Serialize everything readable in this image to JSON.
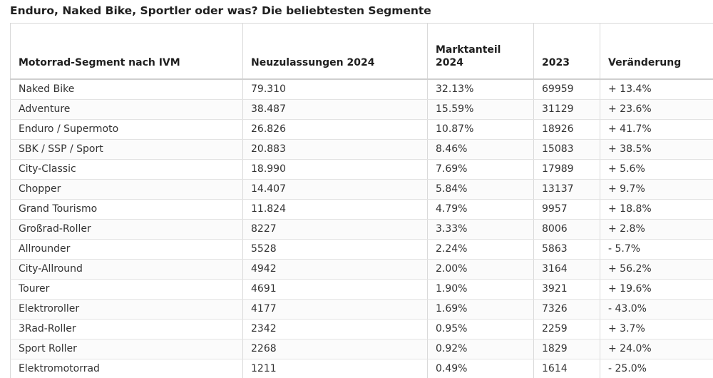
{
  "title": "Enduro, Naked Bike, Sportler oder was? Die beliebtesten Segmente",
  "table": {
    "headers": {
      "segment": "Motorrad-Segment nach IVM",
      "registrations_2024": "Neuzulassungen 2024",
      "market_share_2024": "Marktanteil 2024",
      "year_2023": "2023",
      "change": "Veränderung"
    },
    "rows": [
      {
        "segment": "Naked Bike",
        "registrations_2024": "79.310",
        "market_share_2024": "32.13%",
        "year_2023": "69959",
        "change": "+ 13.4%"
      },
      {
        "segment": "Adventure",
        "registrations_2024": "38.487",
        "market_share_2024": "15.59%",
        "year_2023": "31129",
        "change": "+ 23.6%"
      },
      {
        "segment": "Enduro / Supermoto",
        "registrations_2024": "26.826",
        "market_share_2024": "10.87%",
        "year_2023": "18926",
        "change": "+ 41.7%"
      },
      {
        "segment": "SBK / SSP / Sport",
        "registrations_2024": "20.883",
        "market_share_2024": "8.46%",
        "year_2023": "15083",
        "change": "+ 38.5%"
      },
      {
        "segment": "City-Classic",
        "registrations_2024": "18.990",
        "market_share_2024": "7.69%",
        "year_2023": "17989",
        "change": "+ 5.6%"
      },
      {
        "segment": "Chopper",
        "registrations_2024": "14.407",
        "market_share_2024": "5.84%",
        "year_2023": "13137",
        "change": "+ 9.7%"
      },
      {
        "segment": "Grand Tourismo",
        "registrations_2024": "11.824",
        "market_share_2024": "4.79%",
        "year_2023": "9957",
        "change": "+ 18.8%"
      },
      {
        "segment": "Großrad-Roller",
        "registrations_2024": "8227",
        "market_share_2024": "3.33%",
        "year_2023": "8006",
        "change": "+ 2.8%"
      },
      {
        "segment": "Allrounder",
        "registrations_2024": "5528",
        "market_share_2024": "2.24%",
        "year_2023": "5863",
        "change": "- 5.7%"
      },
      {
        "segment": "City-Allround",
        "registrations_2024": "4942",
        "market_share_2024": "2.00%",
        "year_2023": "3164",
        "change": "+ 56.2%"
      },
      {
        "segment": "Tourer",
        "registrations_2024": "4691",
        "market_share_2024": "1.90%",
        "year_2023": "3921",
        "change": "+ 19.6%"
      },
      {
        "segment": "Elektroroller",
        "registrations_2024": "4177",
        "market_share_2024": "1.69%",
        "year_2023": "7326",
        "change": "- 43.0%"
      },
      {
        "segment": "3Rad-Roller",
        "registrations_2024": "2342",
        "market_share_2024": "0.95%",
        "year_2023": "2259",
        "change": "+ 3.7%"
      },
      {
        "segment": "Sport Roller",
        "registrations_2024": "2268",
        "market_share_2024": "0.92%",
        "year_2023": "1829",
        "change": "+ 24.0%"
      },
      {
        "segment": "Elektromotorrad",
        "registrations_2024": "1211",
        "market_share_2024": "0.49%",
        "year_2023": "1614",
        "change": "- 25.0%"
      }
    ]
  }
}
